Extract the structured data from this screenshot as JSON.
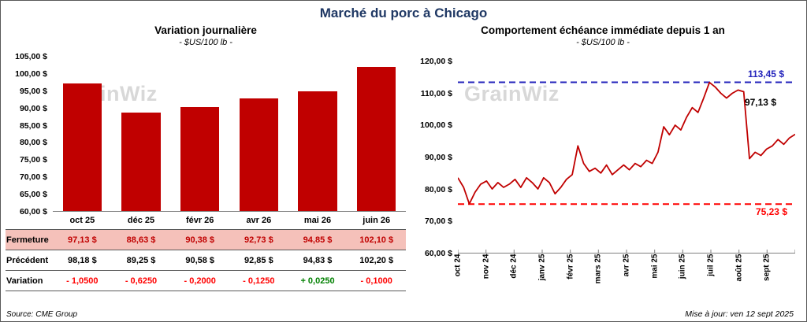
{
  "page": {
    "title": "Marché du porc à Chicago",
    "source": "Source: CME Group",
    "updated": "Mise à jour: ven 12 sept 2025",
    "watermark": "GrainWiz"
  },
  "colors": {
    "bar": "#C00000",
    "line": "#C00000",
    "high_line": "#2222BB",
    "low_line": "#FF0000",
    "negative": "#FF0000",
    "positive": "#008000",
    "fermeture_bg": "#F5C1BA",
    "fermeture_text": "#C00000",
    "title": "#1F3864"
  },
  "chart_data": [
    {
      "type": "bar",
      "title": "Variation  journalière",
      "subtitle": "- $US/100 lb -",
      "categories": [
        "oct 25",
        "déc 25",
        "févr 26",
        "avr 26",
        "mai 26",
        "juin 26"
      ],
      "values": [
        97.13,
        88.63,
        90.38,
        92.73,
        94.85,
        102.1
      ],
      "ylim": [
        60,
        105
      ],
      "ytick_step": 5,
      "ytick_labels": [
        "105,00 $",
        "100,00 $",
        "95,00 $",
        "90,00 $",
        "85,00 $",
        "80,00 $",
        "75,00 $",
        "70,00 $",
        "65,00 $",
        "60,00 $"
      ],
      "grid": false,
      "bar_color": "#C00000"
    },
    {
      "type": "line",
      "title": "Comportement  échéance  immédiate  depuis 1 an",
      "subtitle": "- $US/100 lb -",
      "x_labels": [
        "oct 24",
        "nov 24",
        "déc 24",
        "janv 25",
        "févr 25",
        "mars 25",
        "avr 25",
        "mai 25",
        "juin 25",
        "juil 25",
        "août 25",
        "sept 25"
      ],
      "values": [
        83.5,
        80.5,
        75.3,
        79.0,
        81.5,
        82.5,
        80.0,
        82.0,
        80.5,
        81.5,
        83.0,
        80.5,
        83.5,
        82.0,
        80.0,
        83.5,
        82.0,
        78.5,
        80.5,
        83.0,
        84.5,
        93.5,
        88.0,
        85.5,
        86.5,
        85.0,
        87.5,
        84.5,
        86.0,
        87.5,
        86.0,
        88.0,
        87.0,
        89.0,
        88.0,
        91.5,
        99.5,
        97.0,
        100.0,
        98.5,
        102.5,
        105.5,
        104.0,
        108.5,
        113.4,
        112.0,
        110.0,
        108.5,
        110.0,
        111.0,
        110.5,
        89.5,
        91.5,
        90.5,
        92.5,
        93.5,
        95.5,
        94.0,
        96.0,
        97.13
      ],
      "ylim": [
        60,
        120
      ],
      "ytick_step": 10,
      "ytick_labels": [
        "120,00 $",
        "110,00 $",
        "100,00 $",
        "90,00 $",
        "80,00 $",
        "70,00 $",
        "60,00 $"
      ],
      "grid": false,
      "line_color": "#C00000",
      "annotations": [
        {
          "name": "high",
          "label": "113,45 $",
          "value": 113.45,
          "color": "#2222BB",
          "style": "dashed"
        },
        {
          "name": "low",
          "label": "75,23 $",
          "value": 75.23,
          "color": "#FF0000",
          "style": "dashed"
        },
        {
          "name": "last",
          "label": "97,13 $",
          "value": 97.13,
          "color": "#000000",
          "style": "label"
        }
      ]
    }
  ],
  "table": {
    "columns": [
      "oct 25",
      "déc 25",
      "févr 26",
      "avr 26",
      "mai 26",
      "juin 26"
    ],
    "rows": [
      {
        "label": "Fermeture",
        "values": [
          "97,13  $",
          "88,63  $",
          "90,38  $",
          "92,73  $",
          "94,85  $",
          "102,10  $"
        ]
      },
      {
        "label": "Précédent",
        "values": [
          "98,18  $",
          "89,25  $",
          "90,58  $",
          "92,85  $",
          "94,83  $",
          "102,20  $"
        ]
      },
      {
        "label": "Variation",
        "values": [
          "- 1,0500",
          "- 0,6250",
          "- 0,2000",
          "- 0,1250",
          "+ 0,0250",
          "- 0,1000"
        ],
        "value_signs": [
          "neg",
          "neg",
          "neg",
          "neg",
          "pos",
          "neg"
        ]
      }
    ]
  }
}
